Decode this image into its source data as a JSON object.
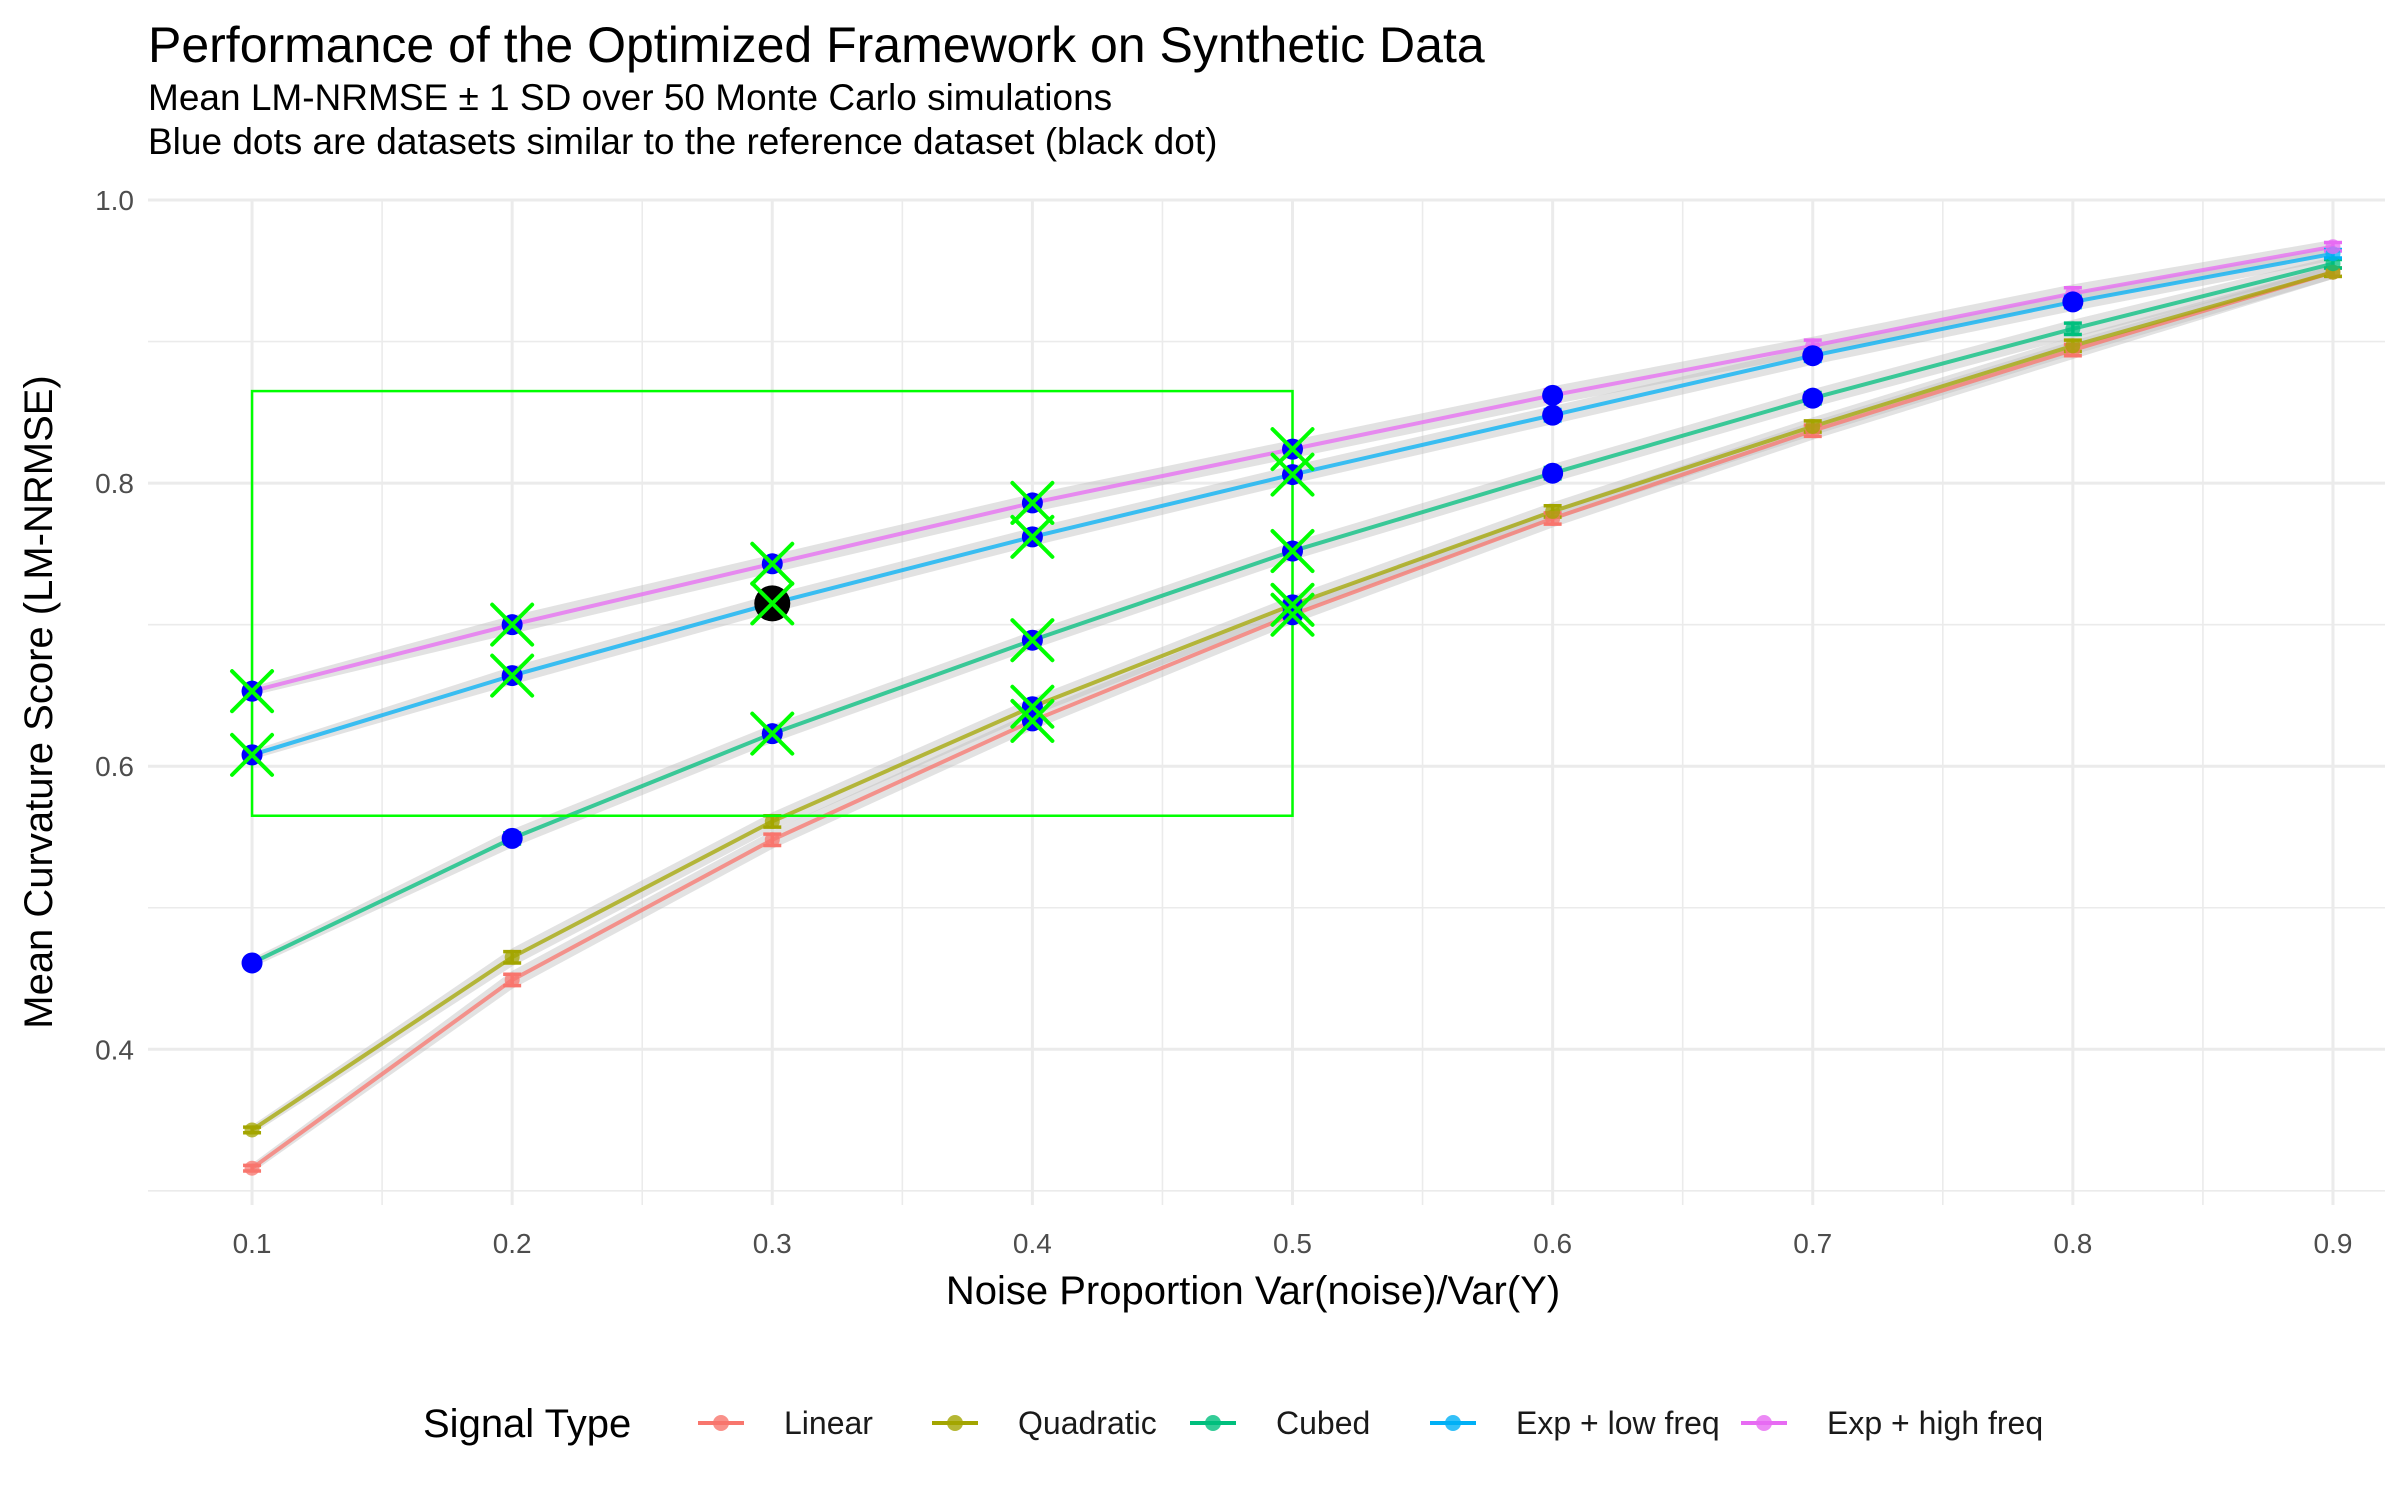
{
  "chart_data": {
    "type": "line",
    "title": "Performance of the Optimized Framework on Synthetic Data",
    "subtitle_lines": [
      "Mean LM-NRMSE ± 1 SD over 50 Monte Carlo simulations",
      "Blue dots are datasets similar to the reference dataset (black dot)"
    ],
    "xlabel": "Noise Proportion Var(noise)/Var(Y)",
    "ylabel": "Mean Curvature Score (LM-NRMSE)",
    "x": [
      0.1,
      0.2,
      0.3,
      0.4,
      0.5,
      0.6,
      0.7,
      0.8,
      0.9
    ],
    "x_ticks": [
      "0.1",
      "0.2",
      "0.3",
      "0.4",
      "0.5",
      "0.6",
      "0.7",
      "0.8",
      "0.9"
    ],
    "y_ticks": [
      "0.4",
      "0.6",
      "0.8",
      "1.0"
    ],
    "xlim": [
      0.06,
      0.92
    ],
    "ylim": [
      0.29,
      1.0
    ],
    "grid": true,
    "legend": {
      "title": "Signal Type",
      "placement": "bottom"
    },
    "series": [
      {
        "name": "Linear",
        "color": "#F8766D",
        "values": [
          0.316,
          0.449,
          0.548,
          0.632,
          0.707,
          0.775,
          0.837,
          0.894,
          0.949
        ],
        "sd": [
          0.002,
          0.004,
          0.004,
          0.004,
          0.004,
          0.004,
          0.004,
          0.004,
          0.003
        ]
      },
      {
        "name": "Quadratic",
        "color": "#A3A500",
        "values": [
          0.343,
          0.465,
          0.561,
          0.642,
          0.714,
          0.78,
          0.84,
          0.897,
          0.949
        ],
        "sd": [
          0.002,
          0.004,
          0.004,
          0.004,
          0.004,
          0.004,
          0.004,
          0.004,
          0.003
        ]
      },
      {
        "name": "Cubed",
        "color": "#00BF7D",
        "values": [
          0.461,
          0.549,
          0.623,
          0.689,
          0.752,
          0.807,
          0.86,
          0.909,
          0.955
        ],
        "sd": [
          0.002,
          0.004,
          0.004,
          0.004,
          0.004,
          0.004,
          0.004,
          0.004,
          0.003
        ]
      },
      {
        "name": "Exp + low freq",
        "color": "#00B0F6",
        "values": [
          0.608,
          0.664,
          0.715,
          0.762,
          0.806,
          0.848,
          0.89,
          0.928,
          0.962
        ],
        "sd": [
          0.002,
          0.004,
          0.004,
          0.004,
          0.004,
          0.004,
          0.004,
          0.004,
          0.003
        ]
      },
      {
        "name": "Exp + high freq",
        "color": "#E76BF3",
        "values": [
          0.653,
          0.7,
          0.743,
          0.786,
          0.824,
          0.862,
          0.897,
          0.934,
          0.967
        ],
        "sd": [
          0.002,
          0.004,
          0.004,
          0.004,
          0.004,
          0.004,
          0.004,
          0.004,
          0.003
        ]
      }
    ],
    "similar_points": [
      {
        "x": 0.1,
        "y": 0.461
      },
      {
        "x": 0.1,
        "y": 0.608
      },
      {
        "x": 0.1,
        "y": 0.653
      },
      {
        "x": 0.2,
        "y": 0.549
      },
      {
        "x": 0.2,
        "y": 0.664
      },
      {
        "x": 0.2,
        "y": 0.7
      },
      {
        "x": 0.3,
        "y": 0.623
      },
      {
        "x": 0.3,
        "y": 0.743
      },
      {
        "x": 0.4,
        "y": 0.632
      },
      {
        "x": 0.4,
        "y": 0.642
      },
      {
        "x": 0.4,
        "y": 0.689
      },
      {
        "x": 0.4,
        "y": 0.762
      },
      {
        "x": 0.4,
        "y": 0.786
      },
      {
        "x": 0.5,
        "y": 0.707
      },
      {
        "x": 0.5,
        "y": 0.714
      },
      {
        "x": 0.5,
        "y": 0.752
      },
      {
        "x": 0.5,
        "y": 0.806
      },
      {
        "x": 0.5,
        "y": 0.824
      },
      {
        "x": 0.6,
        "y": 0.807
      },
      {
        "x": 0.6,
        "y": 0.848
      },
      {
        "x": 0.6,
        "y": 0.862
      },
      {
        "x": 0.7,
        "y": 0.86
      },
      {
        "x": 0.7,
        "y": 0.89
      },
      {
        "x": 0.8,
        "y": 0.928
      }
    ],
    "crossed_points": [
      {
        "x": 0.1,
        "y": 0.608
      },
      {
        "x": 0.1,
        "y": 0.653
      },
      {
        "x": 0.2,
        "y": 0.664
      },
      {
        "x": 0.2,
        "y": 0.7
      },
      {
        "x": 0.3,
        "y": 0.623
      },
      {
        "x": 0.3,
        "y": 0.743
      },
      {
        "x": 0.3,
        "y": 0.715
      },
      {
        "x": 0.4,
        "y": 0.632
      },
      {
        "x": 0.4,
        "y": 0.642
      },
      {
        "x": 0.4,
        "y": 0.689
      },
      {
        "x": 0.4,
        "y": 0.762
      },
      {
        "x": 0.4,
        "y": 0.786
      },
      {
        "x": 0.5,
        "y": 0.707
      },
      {
        "x": 0.5,
        "y": 0.714
      },
      {
        "x": 0.5,
        "y": 0.752
      },
      {
        "x": 0.5,
        "y": 0.806
      },
      {
        "x": 0.5,
        "y": 0.824
      }
    ],
    "reference_point": {
      "x": 0.3,
      "y": 0.715
    },
    "region_box": {
      "x_min": 0.1,
      "x_max": 0.5,
      "y_min": 0.565,
      "y_max": 0.865
    },
    "colors": {
      "similar_points": "#0000FF",
      "reference_point": "#000000",
      "crossed_points": "#00FF00",
      "region_box": "#00FF00",
      "ribbon": "#BEBEBE",
      "grid": "#EBEBEB"
    }
  }
}
